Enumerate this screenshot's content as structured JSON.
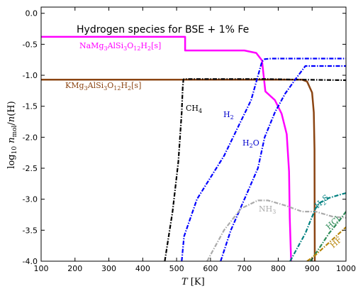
{
  "chart_data": {
    "type": "line",
    "title": "Hydrogen species for BSE + 1% Fe",
    "xlabel": "T [K]",
    "ylabel": "log10 n_mol / n(H)",
    "xlim": [
      100,
      1000
    ],
    "ylim": [
      -4.0,
      0.1
    ],
    "xticks": [
      "100",
      "200",
      "300",
      "400",
      "500",
      "600",
      "700",
      "800",
      "900",
      "1000"
    ],
    "yticks": [
      "0.0",
      "-0.5",
      "-1.0",
      "-1.5",
      "-2.0",
      "-2.5",
      "-3.0",
      "-3.5",
      "-4.0"
    ],
    "grid": false,
    "legend": "none",
    "series": [
      {
        "name": "NaMg3AlSi3O12H2[s]",
        "color": "#ff00ff",
        "dash": "solid",
        "x": [
          100,
          525,
          525,
          700,
          735,
          752,
          762,
          790,
          810,
          825,
          832,
          834,
          838
        ],
        "y": [
          -0.38,
          -0.38,
          -0.6,
          -0.6,
          -0.64,
          -0.76,
          -1.26,
          -1.4,
          -1.62,
          -1.95,
          -2.55,
          -3.3,
          -4.0
        ]
      },
      {
        "name": "KMg3AlSi3O12H2[s]",
        "color": "#8b4513",
        "dash": "solid",
        "x": [
          100,
          870,
          885,
          900,
          905,
          907,
          907.5,
          908
        ],
        "y": [
          -1.07,
          -1.07,
          -1.1,
          -1.28,
          -1.6,
          -2.2,
          -3.3,
          -4.0
        ]
      },
      {
        "name": "CH4",
        "color": "#000000",
        "dash": "dashdot",
        "x": [
          465,
          488,
          505,
          515,
          518,
          520,
          522,
          600,
          760,
          860,
          1000
        ],
        "y": [
          -4.0,
          -3.2,
          -2.4,
          -1.6,
          -1.2,
          -1.07,
          -1.06,
          -1.06,
          -1.06,
          -1.07,
          -1.08
        ]
      },
      {
        "name": "H2",
        "color": "#0000ff",
        "dash": "dashdot",
        "x": [
          515,
          522,
          560,
          640,
          720,
          752,
          760,
          780,
          840,
          880,
          1000
        ],
        "y": [
          -4.0,
          -3.6,
          -3.0,
          -2.3,
          -1.4,
          -0.78,
          -0.74,
          -0.73,
          -0.73,
          -0.73,
          -0.73
        ]
      },
      {
        "name": "H2O",
        "color": "#0000ff",
        "dash": "dashdot",
        "x": [
          630,
          660,
          700,
          740,
          760,
          790,
          820,
          850,
          880,
          1000
        ],
        "y": [
          -4.0,
          -3.5,
          -3.0,
          -2.5,
          -2.0,
          -1.6,
          -1.3,
          -1.07,
          -0.85,
          -0.85
        ]
      },
      {
        "name": "NH3",
        "color": "#aaaaaa",
        "dash": "dashdot",
        "x": [
          590,
          640,
          690,
          740,
          770,
          820,
          870,
          910,
          960,
          1000
        ],
        "y": [
          -4.0,
          -3.5,
          -3.15,
          -3.02,
          -3.02,
          -3.1,
          -3.2,
          -3.2,
          -3.28,
          -3.3
        ]
      },
      {
        "name": "H2S",
        "color": "#008080",
        "dash": "dashdot",
        "x": [
          835,
          860,
          880,
          895,
          910,
          925,
          950,
          980,
          1000
        ],
        "y": [
          -4.0,
          -3.75,
          -3.55,
          -3.35,
          -3.15,
          -3.05,
          -2.98,
          -2.93,
          -2.9
        ]
      },
      {
        "name": "HCl",
        "color": "#2e8b57",
        "dash": "dashdot",
        "x": [
          895,
          920,
          950,
          980,
          1000
        ],
        "y": [
          -4.0,
          -3.8,
          -3.55,
          -3.35,
          -3.2
        ]
      },
      {
        "name": "HF",
        "color": "#b8860b",
        "dash": "dashdot",
        "x": [
          885,
          910,
          940,
          970,
          1000
        ],
        "y": [
          -4.0,
          -3.9,
          -3.75,
          -3.6,
          -3.45
        ]
      }
    ]
  }
}
